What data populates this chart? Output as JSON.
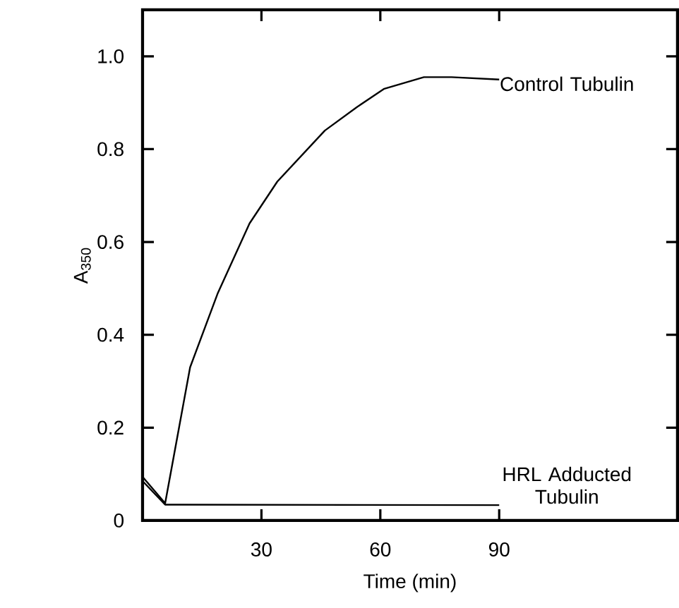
{
  "chart_data": {
    "type": "line",
    "xlabel": "Time (min)",
    "ylabel": "A$_{350}$",
    "xlim": [
      0,
      135
    ],
    "ylim": [
      0,
      1.1
    ],
    "xticks": [
      30,
      60,
      90
    ],
    "yticks": [
      {
        "value": 0,
        "label": "0"
      },
      0.2,
      0.4,
      0.6,
      0.8,
      {
        "value": 1.0,
        "label": "1.0"
      }
    ],
    "grid": false,
    "marker": "none",
    "line_style": "solid",
    "series": [
      {
        "name": "Control Tubulin",
        "color": "#000000",
        "x": [
          0,
          5.7,
          12,
          19,
          27,
          34,
          46,
          54,
          61,
          71,
          78,
          90
        ],
        "values": [
          0.094,
          0.037,
          0.33,
          0.49,
          0.64,
          0.73,
          0.84,
          0.89,
          0.93,
          0.955,
          0.955,
          0.95
        ]
      },
      {
        "name": "HRL Adducted Tubulin",
        "color": "#000000",
        "x": [
          0,
          5.7,
          90
        ],
        "values": [
          0.085,
          0.034,
          0.033
        ]
      }
    ]
  }
}
